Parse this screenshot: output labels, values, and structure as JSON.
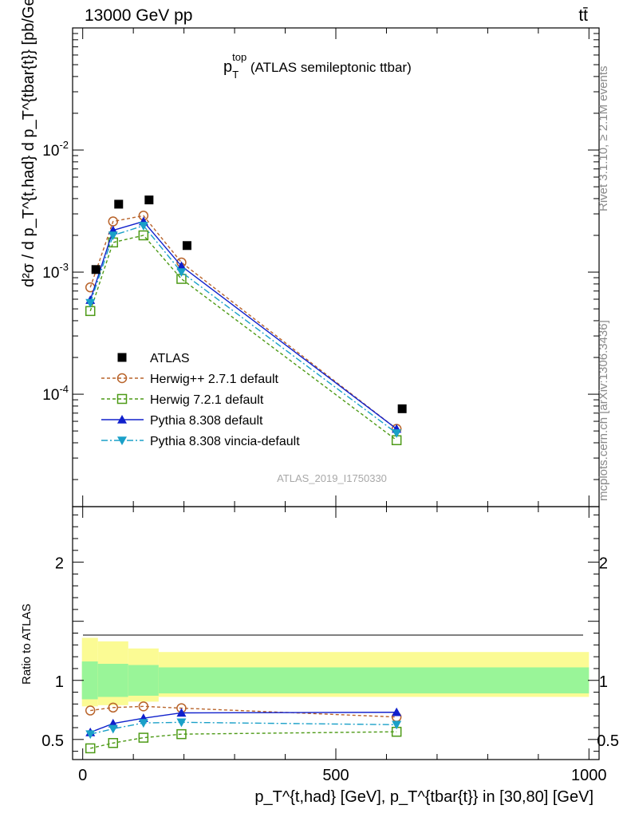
{
  "header": {
    "left": "13000 GeV pp",
    "right": "tt̄"
  },
  "side_labels": {
    "rivet": "Rivet 3.1.10, ≥ 2.1M events",
    "mcplots": "mcplots.cern.ch [arXiv:1306.3436]"
  },
  "watermark": "ATLAS_2019_I1750330",
  "chart_data": {
    "type": "line",
    "title": {
      "main": "p",
      "sup": "top",
      "sub": "T",
      "rest": " (ATLAS semileptonic ttbar)"
    },
    "ylabel": "d²σ / d p_T^{t,had} d p_T^{tbar{t}} [pb/GeV²]",
    "xlabel": "p_T^{t,had} [GeV], p_T^{tbar{t}} in [30,80] [GeV]",
    "ratio_ylabel": "Ratio to ATLAS",
    "xlim": [
      -20,
      1020
    ],
    "ylim": [
      1.2e-05,
      0.1
    ],
    "ratio_ylim": [
      0.33,
      2.47
    ],
    "yscale": "log",
    "main_yticks": [
      {
        "v": 0.01,
        "label": "10",
        "exp": "-2"
      },
      {
        "v": 0.001,
        "label": "10",
        "exp": "-3"
      },
      {
        "v": 0.0001,
        "label": "10",
        "exp": "-4"
      }
    ],
    "ratio_yticks": [
      {
        "v": 2,
        "label": "2"
      },
      {
        "v": 1,
        "label": "1"
      },
      {
        "v": 0.5,
        "label": "0.5"
      }
    ],
    "xticks": [
      {
        "v": 0,
        "label": "0"
      },
      {
        "v": 500,
        "label": "500"
      },
      {
        "v": 1000,
        "label": "1000"
      }
    ],
    "x": [
      15,
      60,
      120,
      195,
      620
    ],
    "bin_edges": [
      0,
      30,
      90,
      150,
      240,
      1000
    ],
    "data": {
      "name": "ATLAS",
      "values": [
        0.00105,
        0.0036,
        0.0039,
        0.00165,
        7.6e-05
      ],
      "ratio_band_green": [
        [
          0.84,
          1.16
        ],
        [
          0.86,
          1.14
        ],
        [
          0.87,
          1.13
        ],
        [
          0.89,
          1.11
        ],
        [
          0.89,
          1.11
        ]
      ],
      "ratio_band_yellow": [
        [
          0.78,
          1.36
        ],
        [
          0.79,
          1.33
        ],
        [
          0.82,
          1.27
        ],
        [
          0.86,
          1.24
        ],
        [
          0.86,
          1.24
        ]
      ]
    },
    "series": [
      {
        "name": "Herwig++ 2.7.1 default",
        "color": "#b8632a",
        "dash": "4,3",
        "marker": "circle-open",
        "values": [
          0.00075,
          0.0026,
          0.0029,
          0.0012,
          5.2e-05
        ],
        "ratio": [
          0.745,
          0.77,
          0.78,
          0.765,
          0.69
        ]
      },
      {
        "name": "Herwig 7.2.1 default",
        "color": "#4d9a16",
        "dash": "4,3",
        "marker": "square-open",
        "values": [
          0.00048,
          0.00175,
          0.002,
          0.00088,
          4.2e-05
        ],
        "ratio": [
          0.425,
          0.47,
          0.515,
          0.545,
          0.565
        ]
      },
      {
        "name": "Pythia 8.308 default",
        "color": "#1020cc",
        "dash": "",
        "marker": "triangle-up",
        "values": [
          0.00059,
          0.0022,
          0.0026,
          0.00112,
          5.2e-05
        ],
        "ratio": [
          0.56,
          0.635,
          0.68,
          0.725,
          0.73
        ]
      },
      {
        "name": "Pythia 8.308 vincia-default",
        "color": "#1aa0c8",
        "dash": "8,3,2,3",
        "marker": "triangle-down",
        "values": [
          0.00056,
          0.002,
          0.0024,
          0.001,
          4.8e-05
        ],
        "ratio": [
          0.545,
          0.59,
          0.64,
          0.645,
          0.625
        ]
      }
    ]
  }
}
